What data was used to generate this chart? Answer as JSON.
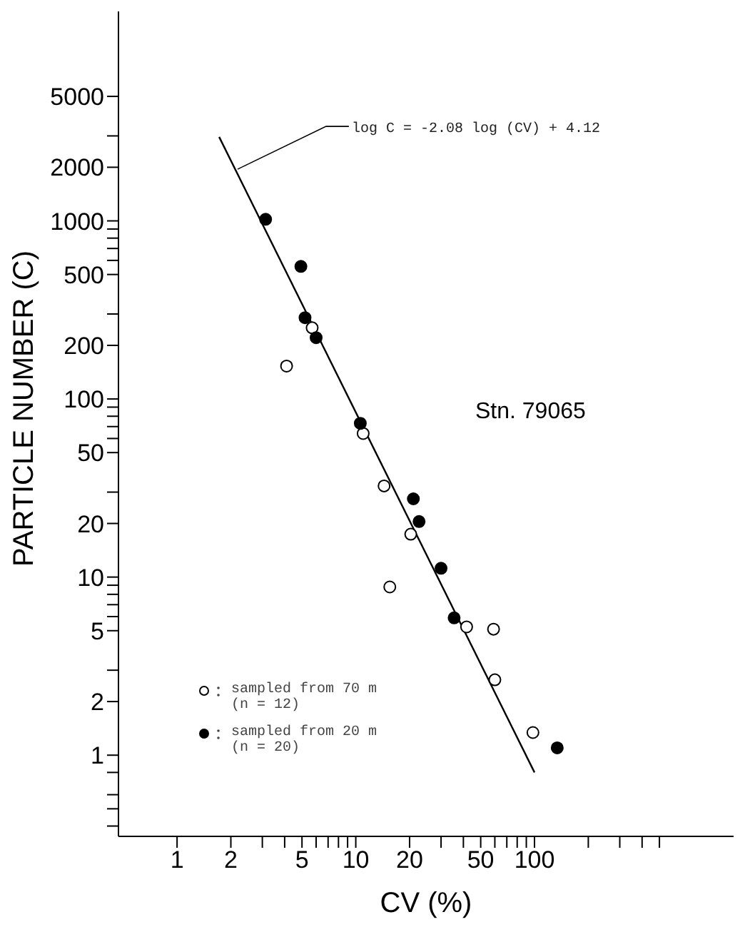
{
  "chart_data": {
    "type": "scatter",
    "xlabel": "CV    (%)",
    "ylabel": "PARTICLE   NUMBER (C)",
    "log": "xy",
    "grid": false,
    "legend": "bottom left",
    "marker": "circle",
    "xlim": [
      0.47,
      1300
    ],
    "ylim": [
      0.35,
      15000
    ],
    "xticks": [
      1,
      2,
      {
        "value": 3,
        "label": null
      },
      {
        "value": 4,
        "label": null
      },
      5,
      {
        "value": 6,
        "label": null
      },
      {
        "value": 7,
        "label": null
      },
      {
        "value": 8,
        "label": null
      },
      {
        "value": 9,
        "label": null
      },
      10,
      20,
      {
        "value": 30,
        "label": null
      },
      {
        "value": 40,
        "label": null
      },
      50,
      {
        "value": 60,
        "label": null
      },
      {
        "value": 70,
        "label": null
      },
      {
        "value": 80,
        "label": null
      },
      {
        "value": 90,
        "label": null
      },
      100,
      {
        "value": 200,
        "label": null
      },
      {
        "value": 300,
        "label": null
      },
      {
        "value": 400,
        "label": null
      },
      {
        "value": 500,
        "label": null
      }
    ],
    "yticks": [
      {
        "value": 0.4,
        "label": null
      },
      {
        "value": 0.5,
        "label": null
      },
      {
        "value": 0.6,
        "label": null
      },
      {
        "value": 0.8,
        "label": null
      },
      1,
      2,
      {
        "value": 3,
        "label": null
      },
      5,
      {
        "value": 6,
        "label": null
      },
      {
        "value": 7,
        "label": null
      },
      {
        "value": 8,
        "label": null
      },
      {
        "value": 9,
        "label": null
      },
      10,
      20,
      {
        "value": 30,
        "label": null
      },
      50,
      {
        "value": 60,
        "label": null
      },
      {
        "value": 70,
        "label": null
      },
      {
        "value": 80,
        "label": null
      },
      {
        "value": 90,
        "label": null
      },
      100,
      200,
      {
        "value": 300,
        "label": null
      },
      500,
      {
        "value": 600,
        "label": null
      },
      {
        "value": 700,
        "label": null
      },
      {
        "value": 800,
        "label": null
      },
      {
        "value": 900,
        "label": null
      },
      1000,
      2000,
      {
        "value": 3000,
        "label": null
      },
      5000
    ],
    "series": [
      {
        "name": "sampled from 70 m (n = 12)",
        "color": "#ffffff",
        "x": [
          4.1,
          5.7,
          11,
          14.4,
          20.3,
          15.5,
          41.7,
          59,
          60,
          98
        ],
        "values": [
          153,
          251,
          64,
          32.5,
          17.4,
          8.8,
          5.25,
          5.1,
          2.65,
          1.34
        ]
      },
      {
        "name": "sampled from 20 m (n = 20)",
        "color": "#000000",
        "x": [
          3.13,
          4.93,
          5.2,
          6.0,
          10.6,
          21,
          22.6,
          30,
          35.5,
          134
        ],
        "values": [
          1020,
          555,
          286,
          221,
          73,
          27.5,
          20.5,
          11.2,
          5.9,
          1.1
        ]
      },
      {
        "type": "line",
        "color": "#000000",
        "marker": "none",
        "x": [
          1.72,
          100
        ],
        "values": [
          2960,
          0.8
        ]
      }
    ],
    "annotations": [
      {
        "text": "log C = -2.08 log (CV) + 4.12",
        "x": 2.18,
        "y": 1950
      },
      "Stn. 79065"
    ]
  }
}
